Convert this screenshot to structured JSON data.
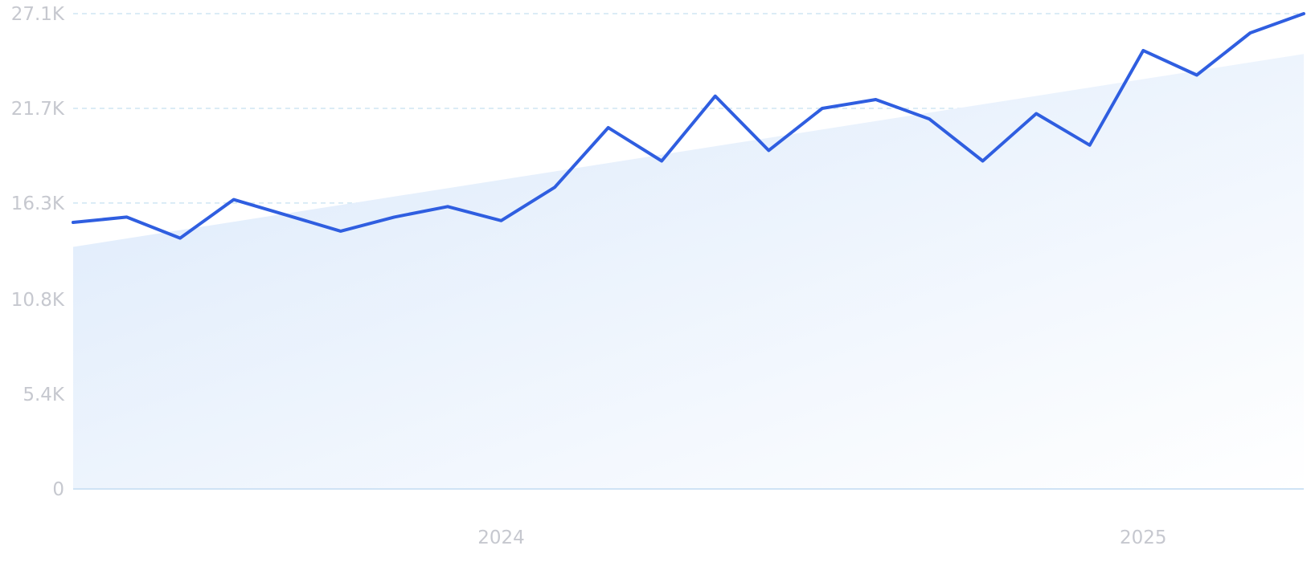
{
  "chart_data": {
    "type": "line",
    "title": "",
    "xlabel": "",
    "ylabel": "",
    "ylim": [
      0,
      27100
    ],
    "y_ticks": [
      {
        "value": 0,
        "label": "0"
      },
      {
        "value": 5400,
        "label": "5.4K"
      },
      {
        "value": 10800,
        "label": "10.8K"
      },
      {
        "value": 16300,
        "label": "16.3K"
      },
      {
        "value": 21700,
        "label": "21.7K"
      },
      {
        "value": 27100,
        "label": "27.1K"
      }
    ],
    "x_ticks": [
      {
        "index": 8,
        "label": "2024"
      },
      {
        "index": 20,
        "label": "2025"
      }
    ],
    "grid": true,
    "legend": "none",
    "series": [
      {
        "values": [
          15200,
          15500,
          14300,
          16500,
          15600,
          14700,
          15500,
          16100,
          15300,
          17200,
          20600,
          18700,
          22400,
          19300,
          21700,
          22200,
          21100,
          18700,
          21400,
          19600,
          25000,
          23600,
          26000,
          27100
        ],
        "color": "#2f5ee0"
      }
    ],
    "trend": {
      "start": 13800,
      "end": 24800,
      "color": "#dbe9fb"
    }
  }
}
